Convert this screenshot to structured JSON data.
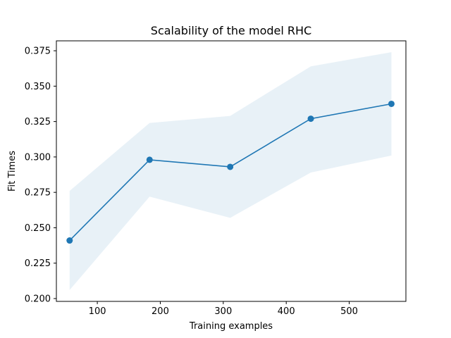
{
  "chart_data": {
    "type": "line",
    "title": "Scalability of the model RHC",
    "xlabel": "Training examples",
    "ylabel": "Fit Times",
    "xlim": [
      35,
      590
    ],
    "ylim": [
      0.198,
      0.382
    ],
    "grid": false,
    "x_ticks": [
      100,
      200,
      300,
      400,
      500
    ],
    "x_tick_labels": [
      "100",
      "200",
      "300",
      "400",
      "500"
    ],
    "y_ticks": [
      0.2,
      0.225,
      0.25,
      0.275,
      0.3,
      0.325,
      0.35,
      0.375
    ],
    "y_tick_labels": [
      "0.200",
      "0.225",
      "0.250",
      "0.275",
      "0.300",
      "0.325",
      "0.350",
      "0.375"
    ],
    "series": [
      {
        "x": [
          56,
          183,
          311,
          439,
          567
        ],
        "y": [
          0.241,
          0.298,
          0.293,
          0.327,
          0.3375
        ],
        "y_upper": [
          0.276,
          0.324,
          0.329,
          0.364,
          0.374
        ],
        "y_lower": [
          0.206,
          0.272,
          0.257,
          0.289,
          0.301
        ],
        "color": "#1f77b4",
        "band_color": "#1f77b4",
        "band_opacity": 0.1,
        "marker": "circle"
      }
    ]
  }
}
